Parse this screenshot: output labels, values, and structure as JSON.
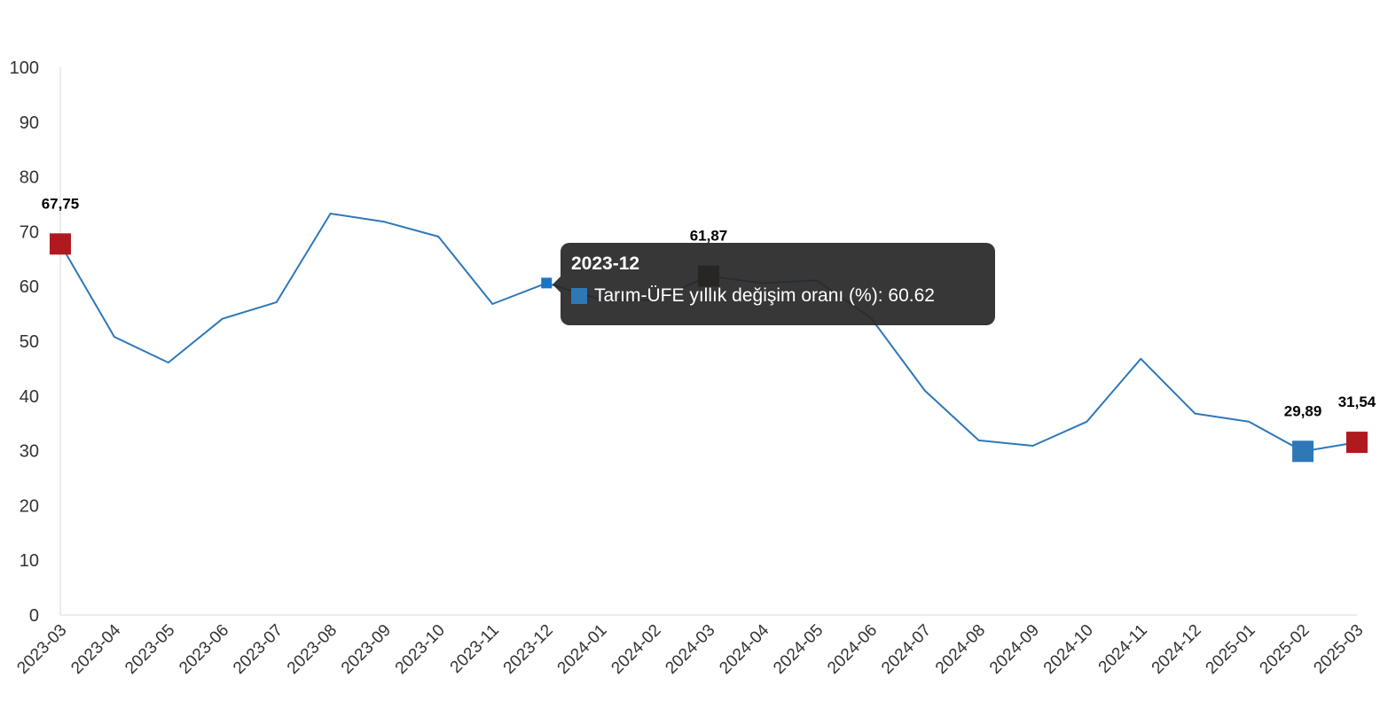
{
  "chart_data": {
    "type": "line",
    "categories": [
      "2023-03",
      "2023-04",
      "2023-05",
      "2023-06",
      "2023-07",
      "2023-08",
      "2023-09",
      "2023-10",
      "2023-11",
      "2023-12",
      "2024-01",
      "2024-02",
      "2024-03",
      "2024-04",
      "2024-05",
      "2024-06",
      "2024-07",
      "2024-08",
      "2024-09",
      "2024-10",
      "2024-11",
      "2024-12",
      "2025-01",
      "2025-02",
      "2025-03"
    ],
    "series": [
      {
        "name": "Tarım-ÜFE yıllık değişim oranı (%)",
        "values": [
          67.75,
          50.8,
          46.1,
          54.1,
          57.1,
          73.3,
          71.8,
          69.1,
          56.8,
          60.62,
          57.6,
          57.5,
          61.87,
          60.6,
          61.1,
          54.3,
          41.0,
          31.9,
          30.9,
          35.3,
          46.8,
          36.8,
          35.3,
          29.89,
          31.54
        ],
        "color": "#2e78b7"
      }
    ],
    "ylim": [
      0,
      100
    ],
    "yticks": [
      "0",
      "10",
      "20",
      "30",
      "40",
      "50",
      "60",
      "70",
      "80",
      "90",
      "100"
    ],
    "grid": false,
    "highlighted_points": [
      {
        "category": "2023-03",
        "label": "67,75",
        "color": "#b01a1f"
      },
      {
        "category": "2024-03",
        "label": "61,87",
        "color": "#2a0505"
      },
      {
        "category": "2025-02",
        "label": "29,89",
        "color": "#2e78b7"
      },
      {
        "category": "2025-03",
        "label": "31,54",
        "color": "#b01a1f"
      }
    ],
    "hover_point": {
      "category": "2023-12",
      "color": "#1a75c9"
    }
  },
  "tooltip": {
    "title": "2023-12",
    "series_label": "Tarım-ÜFE yıllık değişim oranı (%): 60.62",
    "swatch_color": "#2e78b7"
  }
}
